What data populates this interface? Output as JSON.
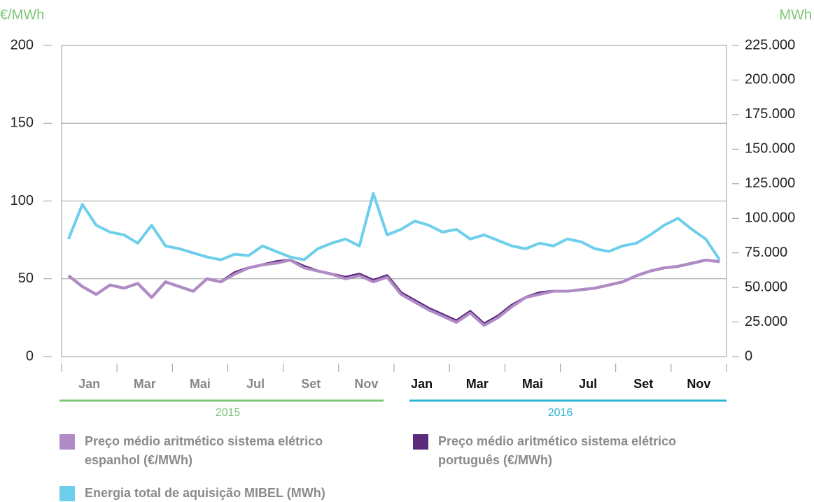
{
  "chart_data": {
    "type": "line",
    "ylabel": "€/MWh",
    "y2label": "MWh",
    "ylim": [
      0,
      200
    ],
    "yticks": [
      0,
      50,
      100,
      150,
      200
    ],
    "y2lim": [
      0,
      225000
    ],
    "y2ticks": [
      {
        "value": 0,
        "label": "0"
      },
      {
        "value": 25000,
        "label": "25.000"
      },
      {
        "value": 50000,
        "label": "50.000"
      },
      {
        "value": 75000,
        "label": "75.000"
      },
      {
        "value": 100000,
        "label": "100.000"
      },
      {
        "value": 125000,
        "label": "125.000"
      },
      {
        "value": 150000,
        "label": "150.000"
      },
      {
        "value": 175000,
        "label": "175.000"
      },
      {
        "value": 200000,
        "label": "200.000"
      },
      {
        "value": 225000,
        "label": "225.000"
      }
    ],
    "grid": true,
    "month_labels": [
      "Jan",
      "Mar",
      "Mai",
      "Jul",
      "Set",
      "Nov",
      "Jan",
      "Mar",
      "Mai",
      "Jul",
      "Set",
      "Nov"
    ],
    "years": [
      {
        "label": "2015",
        "color": "#7cc576"
      },
      {
        "label": "2016",
        "color": "#29b6d6"
      }
    ],
    "series": [
      {
        "name": "Preço médio aritmético sistema elétrico espanhol (€/MWh)",
        "color": "#b08bc6",
        "values": [
          52,
          45,
          40,
          46,
          44,
          47,
          38,
          48,
          45,
          42,
          50,
          48,
          53,
          57,
          59,
          60,
          62,
          57,
          55,
          53,
          50,
          52,
          48,
          51,
          40,
          35,
          30,
          26,
          22,
          28,
          20,
          25,
          32,
          38,
          40,
          42,
          42,
          43,
          44,
          46,
          48,
          52,
          55,
          57,
          58,
          60,
          62,
          61
        ]
      },
      {
        "name": "Preço médio aritmético sistema elétrico português (€/MWh)",
        "color": "#5b2a7a",
        "values": [
          52,
          45,
          40,
          46,
          44,
          47,
          38,
          48,
          45,
          42,
          50,
          48,
          54,
          57,
          59,
          61,
          62,
          58,
          55,
          53,
          51,
          53,
          49,
          52,
          41,
          36,
          31,
          27,
          23,
          29,
          21,
          26,
          33,
          38,
          41,
          42,
          42,
          43,
          44,
          46,
          48,
          52,
          55,
          57,
          58,
          60,
          62,
          61
        ]
      },
      {
        "name": "Energia total de aquisição MIBEL (MWh)",
        "color": "#6dcfeb",
        "axis": "y2",
        "values": [
          85000,
          110000,
          95000,
          90000,
          88000,
          82000,
          95000,
          80000,
          78000,
          75000,
          72000,
          70000,
          74000,
          73000,
          80000,
          76000,
          72000,
          70000,
          78000,
          82000,
          85000,
          80000,
          118000,
          88000,
          92000,
          98000,
          95000,
          90000,
          92000,
          85000,
          88000,
          84000,
          80000,
          78000,
          82000,
          80000,
          85000,
          83000,
          78000,
          76000,
          80000,
          82000,
          88000,
          95000,
          100000,
          92000,
          85000,
          70000
        ]
      }
    ]
  }
}
